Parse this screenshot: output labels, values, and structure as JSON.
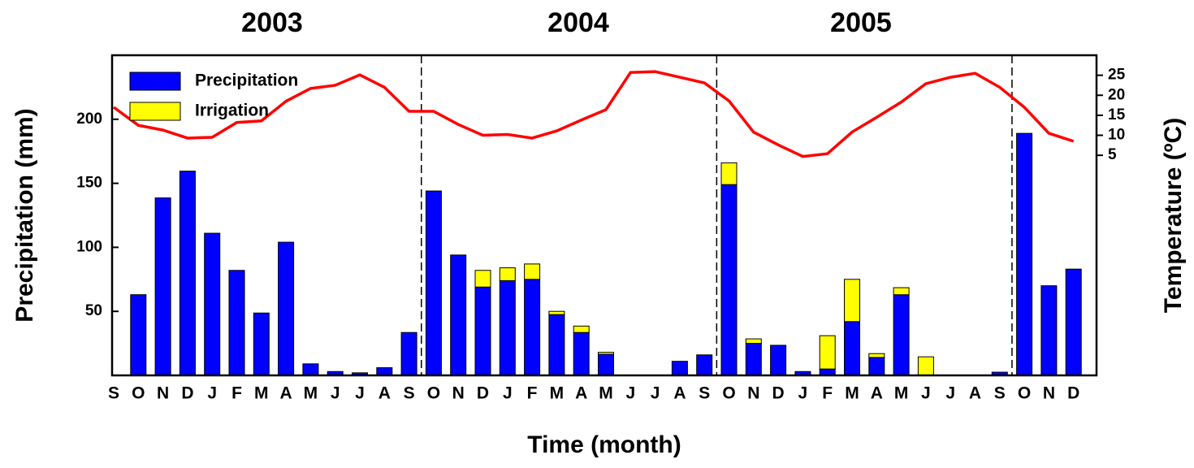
{
  "chart_data": {
    "type": "bar",
    "title_labels": [
      "2003",
      "2004",
      "2005"
    ],
    "x_label": "Time (month)",
    "y_label": "Precipitation (mm)",
    "y2_label": "Temperature (ºC)",
    "categories": [
      "S",
      "O",
      "N",
      "D",
      "J",
      "F",
      "M",
      "A",
      "M",
      "J",
      "J",
      "A",
      "S",
      "O",
      "N",
      "D",
      "J",
      "F",
      "M",
      "A",
      "M",
      "J",
      "J",
      "A",
      "S",
      "O",
      "N",
      "D",
      "J",
      "F",
      "M",
      "A",
      "M",
      "J",
      "J",
      "A",
      "S",
      "O",
      "N",
      "D"
    ],
    "series": [
      {
        "name": "Precipitation",
        "color": "#0000ff",
        "stack": true,
        "values": [
          null,
          63,
          138.6,
          159.5,
          111,
          82,
          48.7,
          104,
          9,
          3,
          2,
          6,
          33.5,
          144,
          94,
          69,
          74,
          75,
          47.5,
          33.5,
          16.5,
          0,
          0,
          11,
          16,
          149,
          25,
          23.5,
          3,
          5,
          42,
          14,
          63,
          0,
          0,
          0,
          2.5,
          189,
          70,
          83
        ]
      },
      {
        "name": "Irrigation",
        "color": "#ffff00",
        "stack": true,
        "values": [
          null,
          0,
          0,
          0,
          0,
          0,
          0,
          0,
          0,
          0,
          0,
          0,
          0,
          0,
          0,
          13,
          10,
          12,
          2.5,
          5,
          1.5,
          0,
          0,
          0,
          0,
          17,
          3.5,
          0,
          0,
          26,
          33,
          3,
          5.5,
          14.5,
          0,
          0,
          0,
          0,
          0,
          0
        ]
      },
      {
        "type": "line",
        "axis": "y2",
        "color": "#ff0000",
        "values": [
          17,
          12.5,
          11.3,
          9.3,
          9.5,
          13.2,
          13.6,
          18.5,
          21.7,
          22.5,
          25.1,
          22,
          16,
          16,
          12.7,
          10,
          10.2,
          9.3,
          11.1,
          13.8,
          16.4,
          25.7,
          25.9,
          24.5,
          23.1,
          18.6,
          10.8,
          7.6,
          4.7,
          5.4,
          10.8,
          14.5,
          18.3,
          22.9,
          24.5,
          25.5,
          22,
          17,
          10.5,
          8.5
        ]
      }
    ],
    "ylim": [
      0,
      250
    ],
    "yticks": [
      50,
      100,
      150,
      200
    ],
    "y2lim": [
      -50,
      30
    ],
    "y2ticks": [
      5,
      10,
      15,
      20,
      25
    ],
    "legend": "top-left"
  }
}
